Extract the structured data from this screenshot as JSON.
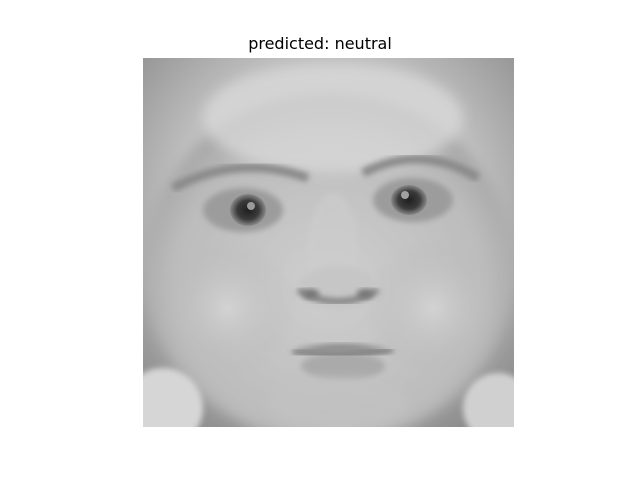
{
  "figure": {
    "title": "predicted: neutral",
    "image": {
      "subject": "baby face, grayscale photograph",
      "colormap": "gray"
    }
  }
}
